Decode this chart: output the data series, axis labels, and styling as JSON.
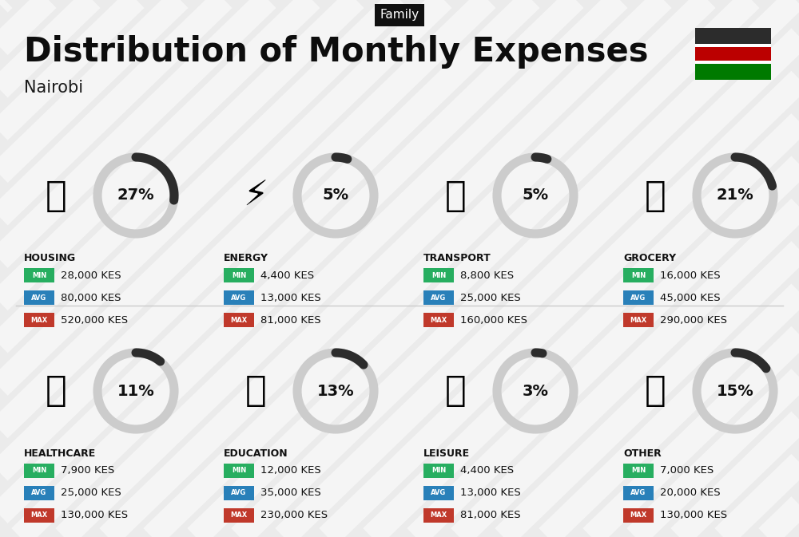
{
  "title": "Distribution of Monthly Expenses",
  "subtitle": "Nairobi",
  "tag": "Family",
  "bg_color": "#ebebeb",
  "stripe_color": "#ffffff",
  "categories": [
    {
      "name": "HOUSING",
      "pct": 27,
      "min": "28,000 KES",
      "avg": "80,000 KES",
      "max": "520,000 KES",
      "row": 0,
      "col": 0
    },
    {
      "name": "ENERGY",
      "pct": 5,
      "min": "4,400 KES",
      "avg": "13,000 KES",
      "max": "81,000 KES",
      "row": 0,
      "col": 1
    },
    {
      "name": "TRANSPORT",
      "pct": 5,
      "min": "8,800 KES",
      "avg": "25,000 KES",
      "max": "160,000 KES",
      "row": 0,
      "col": 2
    },
    {
      "name": "GROCERY",
      "pct": 21,
      "min": "16,000 KES",
      "avg": "45,000 KES",
      "max": "290,000 KES",
      "row": 0,
      "col": 3
    },
    {
      "name": "HEALTHCARE",
      "pct": 11,
      "min": "7,900 KES",
      "avg": "25,000 KES",
      "max": "130,000 KES",
      "row": 1,
      "col": 0
    },
    {
      "name": "EDUCATION",
      "pct": 13,
      "min": "12,000 KES",
      "avg": "35,000 KES",
      "max": "230,000 KES",
      "row": 1,
      "col": 1
    },
    {
      "name": "LEISURE",
      "pct": 3,
      "min": "4,400 KES",
      "avg": "13,000 KES",
      "max": "81,000 KES",
      "row": 1,
      "col": 2
    },
    {
      "name": "OTHER",
      "pct": 15,
      "min": "7,000 KES",
      "avg": "20,000 KES",
      "max": "130,000 KES",
      "row": 1,
      "col": 3
    }
  ],
  "color_min": "#27ae60",
  "color_avg": "#2980b9",
  "color_max": "#c0392b",
  "arc_dark": "#2c2c2c",
  "arc_light": "#cccccc",
  "tag_bg": "#111111",
  "tag_fg": "#ffffff",
  "title_color": "#0d0d0d",
  "subtitle_color": "#1a1a1a",
  "flag_black": "#2c2c2c",
  "flag_red": "#bb0000",
  "flag_green": "#007a00",
  "flag_white": "#ffffff"
}
